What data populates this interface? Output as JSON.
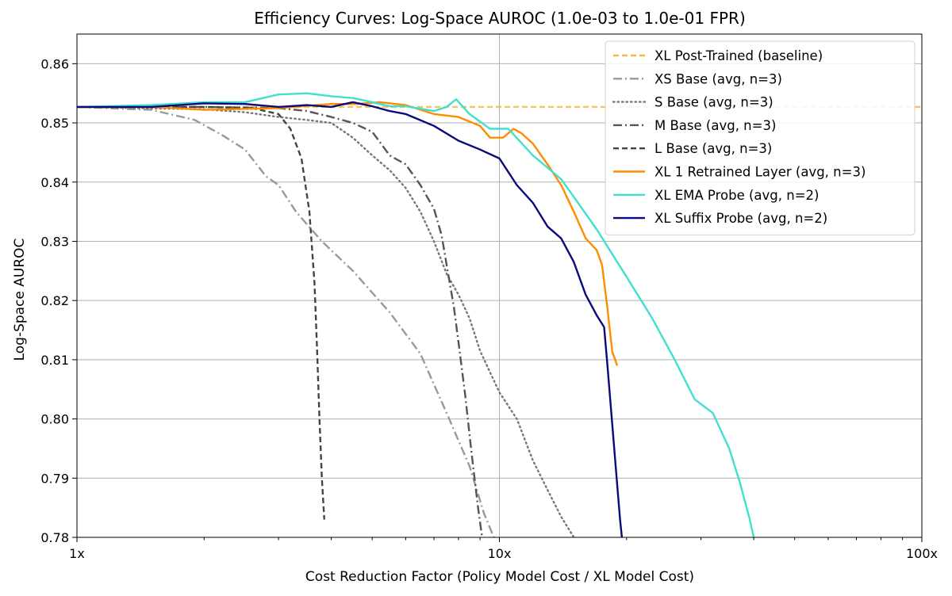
{
  "chart_data": {
    "type": "line",
    "title": "Efficiency Curves: Log-Space AUROC (1.0e-03 to 1.0e-01 FPR)",
    "xlabel": "Cost Reduction Factor (Policy Model Cost / XL Model Cost)",
    "ylabel": "Log-Space AUROC",
    "xscale": "log",
    "xlim": [
      1,
      100
    ],
    "ylim": [
      0.78,
      0.865
    ],
    "xticks": [
      1,
      10,
      100
    ],
    "xtick_labels": [
      "1x",
      "10x",
      "100x"
    ],
    "yticks": [
      0.78,
      0.79,
      0.8,
      0.81,
      0.82,
      0.83,
      0.84,
      0.85,
      0.86
    ],
    "ytick_labels": [
      "0.78",
      "0.79",
      "0.80",
      "0.81",
      "0.82",
      "0.83",
      "0.84",
      "0.85",
      "0.86"
    ],
    "grid": true,
    "legend_location": "top-right",
    "series": [
      {
        "name": "XL Post-Trained (baseline)",
        "color": "#f5b942",
        "dash": "dashed",
        "x": [
          1,
          100
        ],
        "y": [
          0.8527,
          0.8527
        ]
      },
      {
        "name": "XS Base (avg, n=3)",
        "color": "#999999",
        "dash": "dashdot",
        "x": [
          1,
          1.5,
          1.9,
          2.2,
          2.5,
          2.8,
          3.0,
          3.3,
          3.8,
          4.5,
          5.5,
          6.5,
          7.5,
          8.5,
          9.2,
          9.7
        ],
        "y": [
          0.8527,
          0.8522,
          0.8505,
          0.848,
          0.8455,
          0.841,
          0.8395,
          0.835,
          0.83,
          0.825,
          0.818,
          0.811,
          0.801,
          0.792,
          0.784,
          0.78
        ]
      },
      {
        "name": "S Base (avg, n=3)",
        "color": "#777777",
        "dash": "dotted",
        "x": [
          1,
          2.0,
          2.5,
          3.0,
          3.5,
          4.0,
          4.5,
          5.0,
          5.5,
          6.0,
          6.5,
          7.0,
          7.5,
          8.0,
          8.5,
          9.0,
          10.0,
          11.0,
          12.0,
          13.0,
          14.0,
          15.0
        ],
        "y": [
          0.8527,
          0.8523,
          0.8518,
          0.851,
          0.8505,
          0.85,
          0.8475,
          0.8445,
          0.842,
          0.839,
          0.835,
          0.83,
          0.8245,
          0.821,
          0.817,
          0.8115,
          0.8045,
          0.8,
          0.793,
          0.788,
          0.7835,
          0.78
        ]
      },
      {
        "name": "M Base (avg, n=3)",
        "color": "#555555",
        "dash": "dashdot",
        "x": [
          1,
          2.0,
          3.0,
          3.5,
          4.0,
          4.5,
          5.0,
          5.5,
          6.0,
          6.5,
          7.0,
          7.3,
          7.5,
          7.8,
          8.0,
          8.3,
          8.6,
          8.9,
          9.1
        ],
        "y": [
          0.8527,
          0.8527,
          0.8525,
          0.852,
          0.851,
          0.85,
          0.8485,
          0.8445,
          0.843,
          0.8395,
          0.8355,
          0.831,
          0.826,
          0.819,
          0.813,
          0.804,
          0.794,
          0.785,
          0.78
        ]
      },
      {
        "name": "L Base (avg, n=3)",
        "color": "#444444",
        "dash": "dashed",
        "x": [
          1,
          2.0,
          2.6,
          3.0,
          3.2,
          3.4,
          3.55,
          3.65,
          3.7,
          3.75,
          3.8,
          3.85
        ],
        "y": [
          0.8527,
          0.8527,
          0.8525,
          0.8515,
          0.849,
          0.844,
          0.835,
          0.823,
          0.812,
          0.8,
          0.79,
          0.783
        ]
      },
      {
        "name": "XL 1 Retrained Layer (avg, n=3)",
        "color": "#ff8c00",
        "dash": "solid",
        "x": [
          1,
          1.5,
          2.0,
          3.0,
          4.0,
          4.6,
          5.2,
          6.0,
          7.0,
          8.0,
          9.0,
          9.5,
          10.2,
          10.8,
          11.3,
          12.0,
          13.0,
          14.0,
          15.0,
          16.0,
          17.0,
          17.5,
          18.0,
          18.5,
          18.8,
          19.0
        ],
        "y": [
          0.8527,
          0.8527,
          0.8522,
          0.8525,
          0.8532,
          0.8532,
          0.8535,
          0.853,
          0.8515,
          0.851,
          0.8495,
          0.8475,
          0.8475,
          0.849,
          0.8482,
          0.8465,
          0.843,
          0.8395,
          0.835,
          0.8305,
          0.8285,
          0.826,
          0.819,
          0.8113,
          0.81,
          0.809
        ]
      },
      {
        "name": "XL EMA Probe (avg, n=2)",
        "color": "#40e0d0",
        "dash": "solid",
        "x": [
          1,
          1.5,
          2.0,
          2.5,
          3.0,
          3.5,
          4.0,
          4.5,
          5.0,
          5.5,
          6.0,
          7.0,
          7.5,
          7.9,
          8.5,
          9.5,
          10.5,
          12.0,
          14.0,
          15.0,
          17.0,
          20.0,
          23.0,
          26.0,
          29.0,
          32.0,
          35.0,
          37.0,
          39.0,
          40.0
        ],
        "y": [
          0.8527,
          0.853,
          0.8535,
          0.8535,
          0.8548,
          0.855,
          0.8545,
          0.8542,
          0.8535,
          0.8528,
          0.8528,
          0.852,
          0.8527,
          0.854,
          0.8515,
          0.849,
          0.849,
          0.8445,
          0.8405,
          0.8375,
          0.832,
          0.824,
          0.817,
          0.81,
          0.8033,
          0.801,
          0.795,
          0.7895,
          0.7835,
          0.78
        ]
      },
      {
        "name": "XL Suffix Probe (avg, n=2)",
        "color": "#0a0a7a",
        "dash": "solid",
        "x": [
          1,
          1.5,
          2.0,
          2.5,
          3.0,
          3.5,
          4.0,
          4.5,
          5.0,
          5.5,
          6.0,
          7.0,
          8.0,
          9.0,
          10.0,
          11.0,
          12.0,
          13.0,
          14.0,
          15.0,
          16.0,
          17.0,
          17.7,
          18.0,
          18.5,
          19.0,
          19.3,
          19.5
        ],
        "y": [
          0.8527,
          0.8527,
          0.8533,
          0.8532,
          0.8527,
          0.853,
          0.8527,
          0.8535,
          0.8528,
          0.852,
          0.8515,
          0.8495,
          0.847,
          0.8455,
          0.844,
          0.8395,
          0.8365,
          0.8325,
          0.8305,
          0.8265,
          0.821,
          0.8175,
          0.8155,
          0.8095,
          0.799,
          0.789,
          0.783,
          0.78
        ]
      }
    ]
  }
}
